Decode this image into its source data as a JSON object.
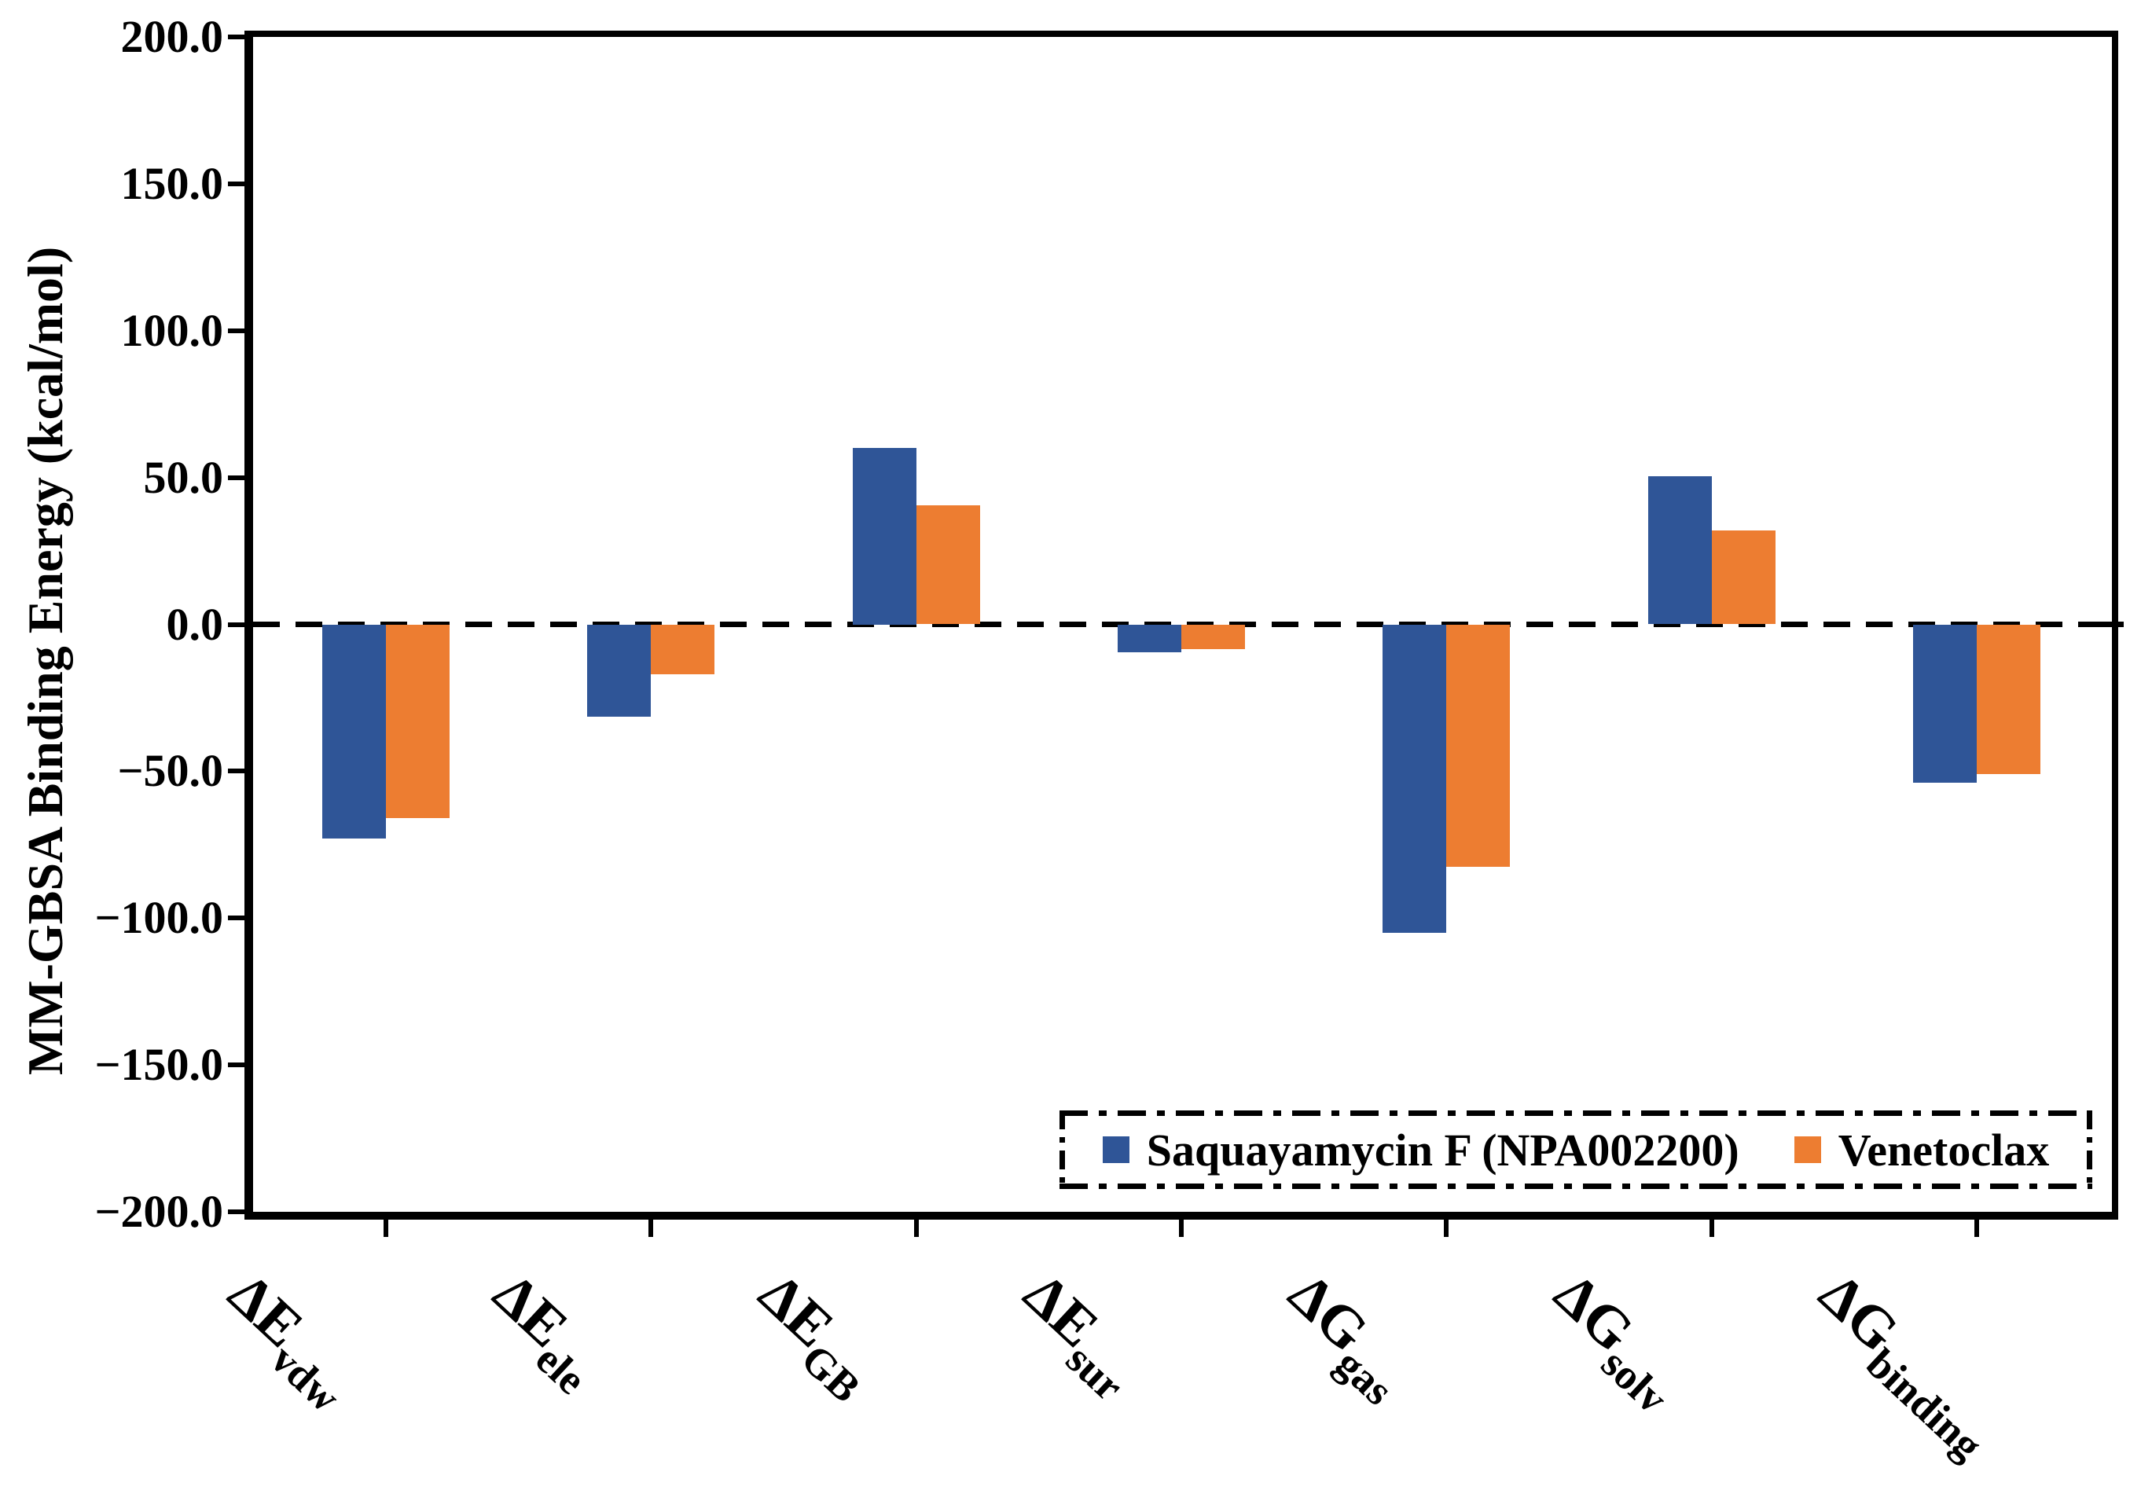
{
  "chart_data": {
    "type": "bar",
    "title": "",
    "ylabel": "MM-GBSA Binding Energy (kcal/mol)",
    "xlabel": "",
    "ylim": [
      -200,
      200
    ],
    "ytick_step": 50,
    "ytick_labels": [
      "200.0",
      "150.0",
      "100.0",
      "50.0",
      "0.0",
      "−50.0",
      "−100.0",
      "−150.0",
      "−200.0"
    ],
    "grid": false,
    "baseline": 0,
    "baseline_style": "dashed",
    "legend_position": "bottom-right-inside",
    "legend_border": "dash-dot",
    "categories": [
      {
        "main": "ΔE",
        "sub": "vdw"
      },
      {
        "main": "ΔE",
        "sub": "ele"
      },
      {
        "main": "ΔE",
        "sub": "GB"
      },
      {
        "main": "ΔE",
        "sub": "sur"
      },
      {
        "main": "ΔG",
        "sub": "gas"
      },
      {
        "main": "ΔG",
        "sub": "solv"
      },
      {
        "main": "ΔG",
        "sub": "binding"
      }
    ],
    "series": [
      {
        "name": "Saquayamycin F (NPA002200)",
        "color": "#2F5597",
        "values": [
          -73,
          -31.5,
          60,
          -9.5,
          -105,
          50.5,
          -54
        ]
      },
      {
        "name": "Venetoclax",
        "color": "#ED7D31",
        "values": [
          -66,
          -17,
          40.5,
          -8.5,
          -82.5,
          32,
          -51
        ]
      }
    ]
  }
}
